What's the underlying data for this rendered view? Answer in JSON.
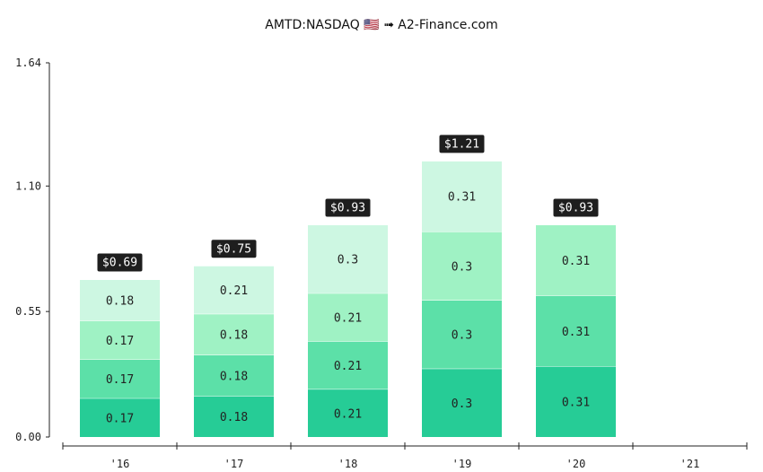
{
  "chart_data": {
    "type": "bar",
    "stacked": true,
    "title": "AMTD:NASDAQ 🇺🇸 ➟ A2-Finance.com",
    "categories": [
      "'16",
      "'17",
      "'18",
      "'19",
      "'20",
      "'21"
    ],
    "yticks": [
      "0.00",
      "0.55",
      "1.10",
      "1.64"
    ],
    "ylim": [
      0,
      1.64
    ],
    "colors": [
      "#26cc96",
      "#5ce0a8",
      "#9ff2c4",
      "#cdf7e2"
    ],
    "label_color": "#222222",
    "totals": [
      "$0.69",
      "$0.75",
      "$0.93",
      "$1.21",
      "$0.93",
      null
    ],
    "stacks": [
      [
        0.17,
        0.17,
        0.17,
        0.18
      ],
      [
        0.18,
        0.18,
        0.18,
        0.21
      ],
      [
        0.21,
        0.21,
        0.21,
        0.3
      ],
      [
        0.3,
        0.3,
        0.3,
        0.31
      ],
      [
        0.31,
        0.31,
        0.31
      ],
      []
    ],
    "grid": false
  }
}
